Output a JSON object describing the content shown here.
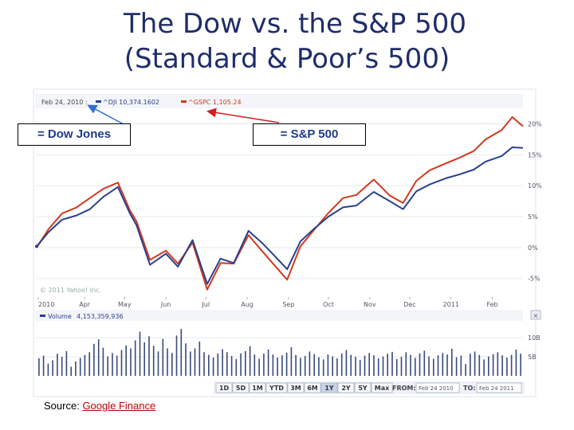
{
  "title_line1": "The Dow vs. the S&P 500",
  "title_line2": "(Standard & Poor’s 500)",
  "callouts": {
    "dow": "= Dow Jones",
    "sp": "= S&P 500"
  },
  "source": {
    "prefix": "Source:",
    "link": "Google Finance"
  },
  "colors": {
    "dji": "#2b3f8f",
    "gspc": "#d23a1e",
    "title": "#1f2d6b"
  },
  "chart_data": {
    "type": "line",
    "header": {
      "date": "Feb 24, 2010 :",
      "dji": "^DJI 10,374.1602",
      "gspc": "^GSPC 1,105.24"
    },
    "copyright": "© 2011 Yahoo! Inc.",
    "x_labels": [
      "2010",
      "Apr",
      "May",
      "Jun",
      "Jul",
      "Aug",
      "Sep",
      "Oct",
      "Nov",
      "Dec",
      "2011",
      "Feb"
    ],
    "y_ticks": [
      "20%",
      "15%",
      "10%",
      "5%",
      "0%",
      "-5%"
    ],
    "ylim": [
      -8,
      22
    ],
    "series": [
      {
        "name": "^DJI",
        "x": [
          "2010-02-24",
          "2010-03-05",
          "2010-03-15",
          "2010-03-26",
          "2010-04-05",
          "2010-04-15",
          "2010-04-26",
          "2010-05-05",
          "2010-05-10",
          "2010-05-20",
          "2010-06-01",
          "2010-06-10",
          "2010-06-21",
          "2010-07-02",
          "2010-07-12",
          "2010-07-22",
          "2010-08-02",
          "2010-08-12",
          "2010-08-20",
          "2010-08-31",
          "2010-09-10",
          "2010-09-20",
          "2010-10-01",
          "2010-10-12",
          "2010-10-22",
          "2010-11-04",
          "2010-11-16",
          "2010-11-26",
          "2010-12-06",
          "2010-12-16",
          "2010-12-28",
          "2011-01-07",
          "2011-01-18",
          "2011-01-27",
          "2011-02-08",
          "2011-02-16",
          "2011-02-24"
        ],
        "values": [
          0.2,
          2.5,
          4.5,
          5.2,
          6.2,
          8.2,
          9.8,
          5.5,
          3.6,
          -2.8,
          -1.0,
          -3.1,
          1.2,
          -5.9,
          -1.8,
          -2.5,
          2.7,
          0.8,
          -1.0,
          -3.5,
          1.0,
          3.0,
          5.0,
          6.5,
          6.8,
          9.0,
          7.5,
          6.2,
          9.1,
          10.2,
          11.2,
          11.8,
          12.6,
          13.9,
          14.8,
          16.2,
          16.1
        ]
      },
      {
        "name": "^GSPC",
        "x": [
          "2010-02-24",
          "2010-03-05",
          "2010-03-15",
          "2010-03-26",
          "2010-04-05",
          "2010-04-15",
          "2010-04-26",
          "2010-05-05",
          "2010-05-10",
          "2010-05-20",
          "2010-06-01",
          "2010-06-10",
          "2010-06-21",
          "2010-07-02",
          "2010-07-12",
          "2010-07-22",
          "2010-08-02",
          "2010-08-12",
          "2010-08-20",
          "2010-08-31",
          "2010-09-10",
          "2010-09-20",
          "2010-10-01",
          "2010-10-12",
          "2010-10-22",
          "2010-11-04",
          "2010-11-16",
          "2010-11-26",
          "2010-12-06",
          "2010-12-16",
          "2010-12-28",
          "2011-01-07",
          "2011-01-18",
          "2011-01-27",
          "2011-02-08",
          "2011-02-16",
          "2011-02-24"
        ],
        "values": [
          0.0,
          3.0,
          5.5,
          6.5,
          8.0,
          9.5,
          10.5,
          6.0,
          4.2,
          -2.0,
          -0.5,
          -2.6,
          0.8,
          -6.8,
          -2.5,
          -2.6,
          2.0,
          -0.5,
          -2.5,
          -5.2,
          0.2,
          2.8,
          5.6,
          8.0,
          8.5,
          11.0,
          8.4,
          7.2,
          10.8,
          12.5,
          13.6,
          14.5,
          15.6,
          17.5,
          19.0,
          21.1,
          19.6
        ]
      }
    ],
    "volume": {
      "label": "Volume",
      "value": "4,153,359,936",
      "y_ticks": [
        "10B",
        "5B"
      ],
      "ylim": [
        0,
        14
      ],
      "values_b": [
        4.6,
        5.3,
        3.2,
        4.1,
        5.8,
        5.0,
        6.5,
        2.4,
        3.8,
        4.7,
        5.5,
        6.2,
        8.4,
        9.6,
        7.4,
        5.1,
        6.0,
        5.3,
        6.8,
        8.0,
        7.2,
        9.3,
        11.6,
        8.8,
        10.4,
        7.9,
        6.4,
        9.7,
        7.2,
        6.0,
        10.6,
        12.3,
        8.5,
        6.4,
        7.2,
        9.0,
        6.2,
        5.5,
        4.8,
        5.9,
        7.0,
        6.2,
        5.2,
        4.4,
        5.9,
        6.5,
        7.8,
        5.6,
        4.5,
        5.8,
        6.9,
        5.6,
        4.8,
        5.4,
        6.1,
        7.5,
        5.5,
        4.7,
        5.2,
        6.4,
        5.7,
        4.9,
        4.3,
        5.6,
        5.1,
        4.6,
        5.9,
        6.8,
        5.5,
        5.0,
        4.2,
        5.3,
        6.0,
        5.4,
        4.6,
        5.1,
        5.8,
        6.3,
        4.4,
        5.0,
        6.2,
        5.5,
        4.7,
        5.9,
        6.6,
        5.1,
        4.5,
        5.4,
        6.0,
        5.6,
        7.1,
        4.9,
        5.3,
        3.1,
        5.8,
        6.4,
        5.5,
        4.3,
        5.1,
        5.7,
        6.2,
        5.4,
        4.8,
        5.5,
        6.9,
        5.8
      ]
    },
    "ranges": [
      "1D",
      "5D",
      "1M",
      "YTD",
      "3M",
      "6M",
      "1Y",
      "2Y",
      "5Y",
      "Max"
    ],
    "range_selected": "1Y",
    "from_label": "FROM:",
    "from_value": "Feb 24 2010",
    "to_label": "TO:",
    "to_value": "Feb 24 2011"
  }
}
